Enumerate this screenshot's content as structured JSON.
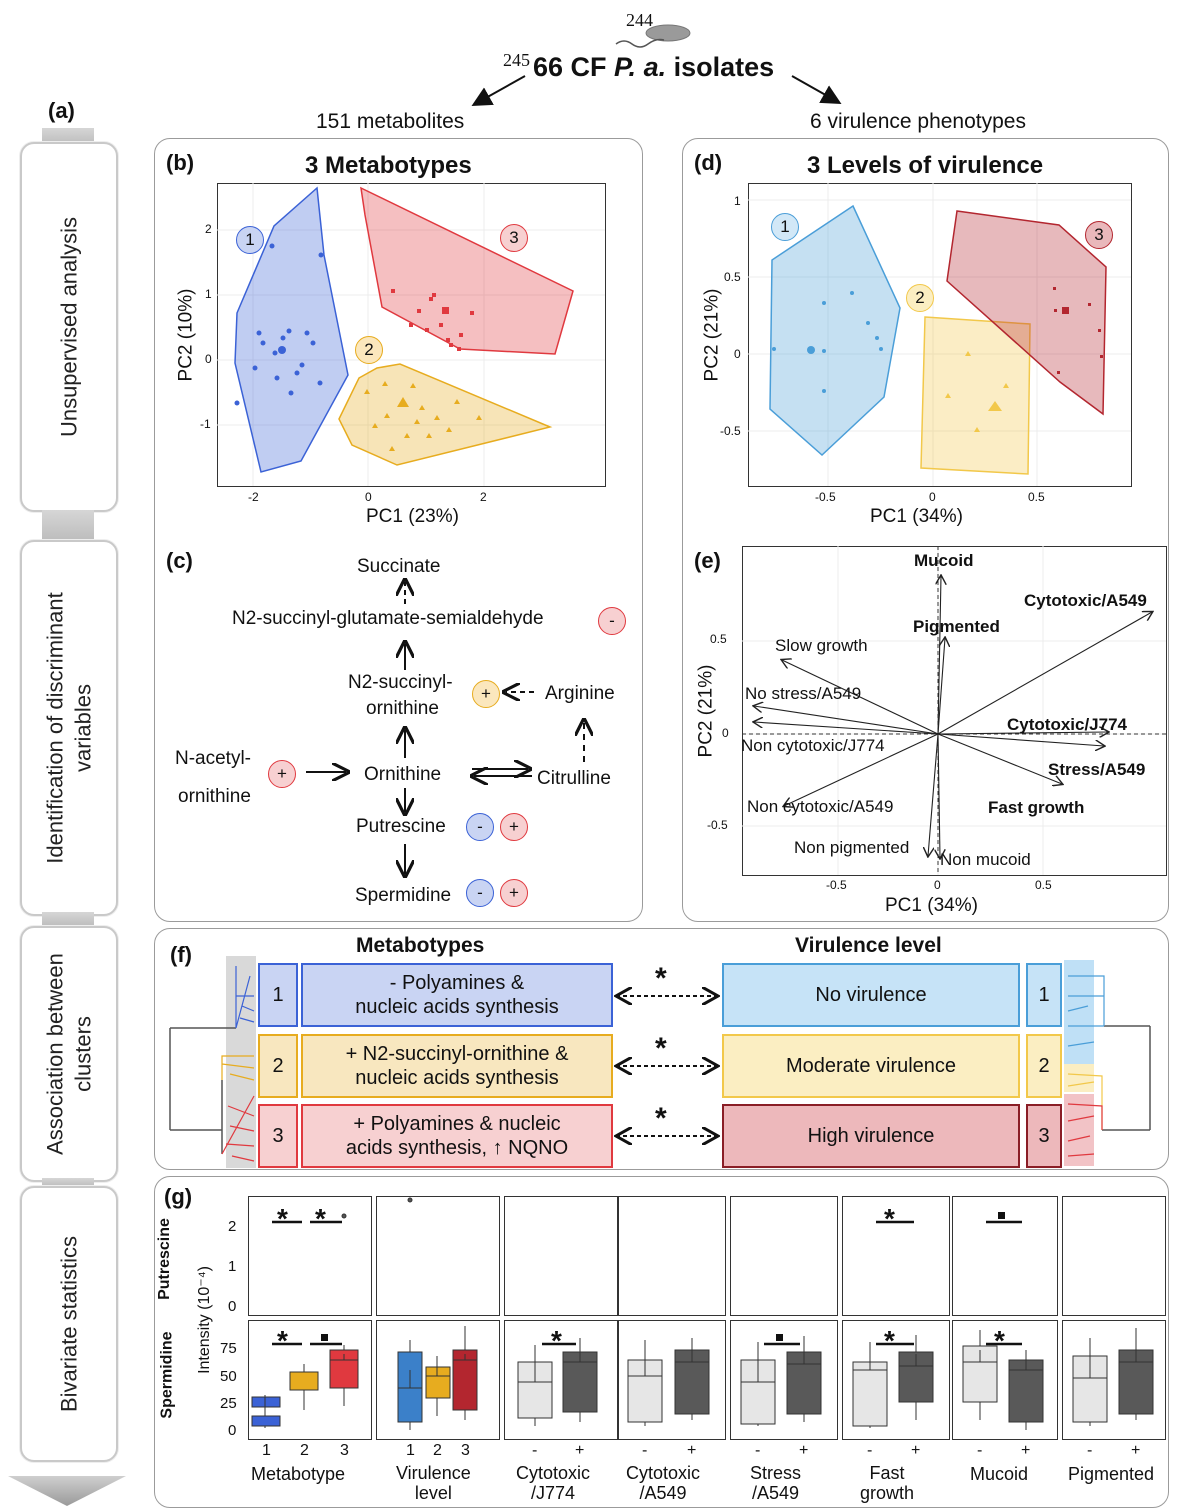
{
  "header": {
    "page_num_top": "244",
    "page_num_left": "245",
    "isolates": "66 CF ",
    "species": "P. a.",
    "isolates_suffix": " isolates",
    "left_branch": "151 metabolites",
    "right_branch": "6 virulence phenotypes"
  },
  "sidebar": {
    "label_a": "(a)",
    "steps": [
      "Unsupervised analysis",
      "Identification of discriminant\nvariables",
      "Association between\nclusters",
      "Bivariate statistics"
    ]
  },
  "panel_b": {
    "label": "(b)",
    "title": "3 Metabotypes",
    "xlabel": "PC1 (23%)",
    "ylabel": "PC2 (10%)",
    "xticks": [
      "-2",
      "0",
      "2"
    ],
    "yticks": [
      "2",
      "1",
      "0",
      "-1"
    ],
    "clusters": [
      "1",
      "2",
      "3"
    ],
    "colors": {
      "c1": "#3b62d6",
      "c2": "#e7ac1f",
      "c3": "#e0393f"
    }
  },
  "panel_c": {
    "label": "(c)",
    "nodes": {
      "succinate": "Succinate",
      "semialdehyde": "N2-succinyl-glutamate-semialdehyde",
      "succ_orn1": "N2-succinyl-",
      "succ_orn2": "ornithine",
      "arginine": "Arginine",
      "nacetyl1": "N-acetyl-",
      "nacetyl2": "ornithine",
      "ornithine": "Ornithine",
      "citrulline": "Citrulline",
      "putrescine": "Putrescine",
      "spermidine": "Spermidine"
    },
    "minus": "-",
    "plus": "+"
  },
  "panel_d": {
    "label": "(d)",
    "title": "3 Levels of virulence",
    "xlabel": "PC1 (34%)",
    "ylabel": "PC2 (21%)",
    "xticks": [
      "-0.5",
      "0",
      "0.5"
    ],
    "yticks": [
      "1",
      "0.5",
      "0",
      "-0.5"
    ],
    "clusters": [
      "1",
      "2",
      "3"
    ],
    "colors": {
      "c1": "#4a9ed8",
      "c2": "#f2c84a",
      "c3": "#b3262f"
    }
  },
  "panel_e": {
    "label": "(e)",
    "xlabel": "PC1 (34%)",
    "ylabel": "PC2 (21%)",
    "xticks": [
      "-0.5",
      "0",
      "0.5"
    ],
    "yticks": [
      "0.5",
      "0",
      "-0.5"
    ],
    "vectors": [
      "Mucoid",
      "Pigmented",
      "Cytotoxic/A549",
      "Slow growth",
      "No stress/A549",
      "Non cytotoxic/J774",
      "Cytotoxic/J774",
      "Stress/A549",
      "Non cytotoxic/A549",
      "Fast growth",
      "Non pigmented",
      "Non mucoid"
    ]
  },
  "panel_f": {
    "label": "(f)",
    "left_title": "Metabotypes",
    "right_title": "Virulence level",
    "rows": [
      {
        "num": "1",
        "metab": "- Polyamines &\nnucleic acids synthesis",
        "vir": "No virulence",
        "star": "*"
      },
      {
        "num": "2",
        "metab": "+ N2-succinyl-ornithine &\nnucleic acids synthesis",
        "vir": "Moderate virulence",
        "star": "*"
      },
      {
        "num": "3",
        "metab": "+ Polyamines & nucleic\nacids synthesis, ↑ NQNO",
        "vir": "High virulence",
        "star": "*"
      }
    ]
  },
  "panel_g": {
    "label": "(g)",
    "row_titles": [
      "Putrescine",
      "Spermidine"
    ],
    "ylabel": "Intensity (10⁻⁴)",
    "yticks_top": [
      "2",
      "1",
      "0"
    ],
    "yticks_bottom": [
      "75",
      "50",
      "25",
      "0"
    ],
    "facets": [
      {
        "xticks": [
          "1",
          "2",
          "3"
        ],
        "label": "Metabotype"
      },
      {
        "xticks": [
          "1",
          "2",
          "3"
        ],
        "label": "Virulence\nlevel"
      },
      {
        "xticks": [
          "-",
          "+"
        ],
        "label": "Cytotoxic\n/J774"
      },
      {
        "xticks": [
          "-",
          "+"
        ],
        "label": "Cytotoxic\n/A549"
      },
      {
        "xticks": [
          "-",
          "+"
        ],
        "label": "Stress\n/A549"
      },
      {
        "xticks": [
          "-",
          "+"
        ],
        "label": "Fast\ngrowth"
      },
      {
        "xticks": [
          "-",
          "+"
        ],
        "label": "Mucoid"
      },
      {
        "xticks": [
          "-",
          "+"
        ],
        "label": "Pigmented"
      }
    ]
  }
}
